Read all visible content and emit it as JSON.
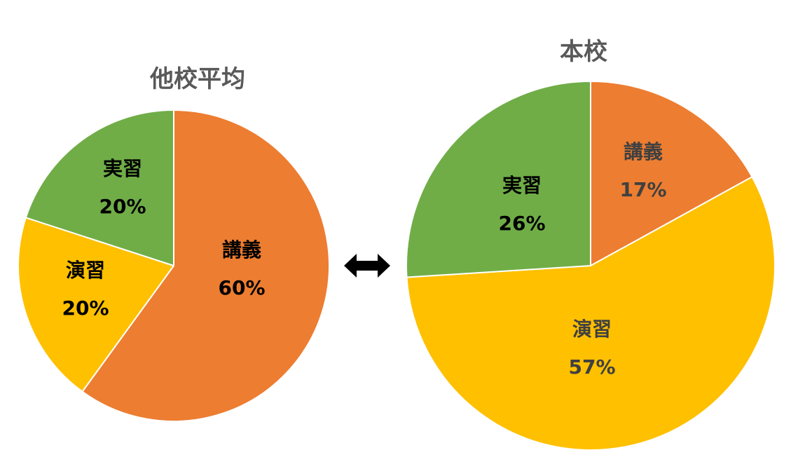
{
  "chart_data": [
    {
      "type": "pie",
      "title": "他校平均",
      "slices": [
        {
          "name": "講義",
          "value": 60,
          "label": "60%",
          "color": "#ED7D31",
          "label_color": "#000000"
        },
        {
          "name": "演習",
          "value": 20,
          "label": "20%",
          "color": "#FFC000",
          "label_color": "#000000"
        },
        {
          "name": "実習",
          "value": 20,
          "label": "20%",
          "color": "#70AD47",
          "label_color": "#000000"
        }
      ]
    },
    {
      "type": "pie",
      "title": "本校",
      "slices": [
        {
          "name": "講義",
          "value": 17,
          "label": "17%",
          "color": "#ED7D31",
          "label_color": "#404040"
        },
        {
          "name": "演習",
          "value": 57,
          "label": "57%",
          "color": "#FFC000",
          "label_color": "#404040"
        },
        {
          "name": "実習",
          "value": 26,
          "label": "26%",
          "color": "#70AD47",
          "label_color": "#000000"
        }
      ]
    }
  ],
  "connector": {
    "icon": "double-arrow-icon",
    "color": "#000000"
  }
}
